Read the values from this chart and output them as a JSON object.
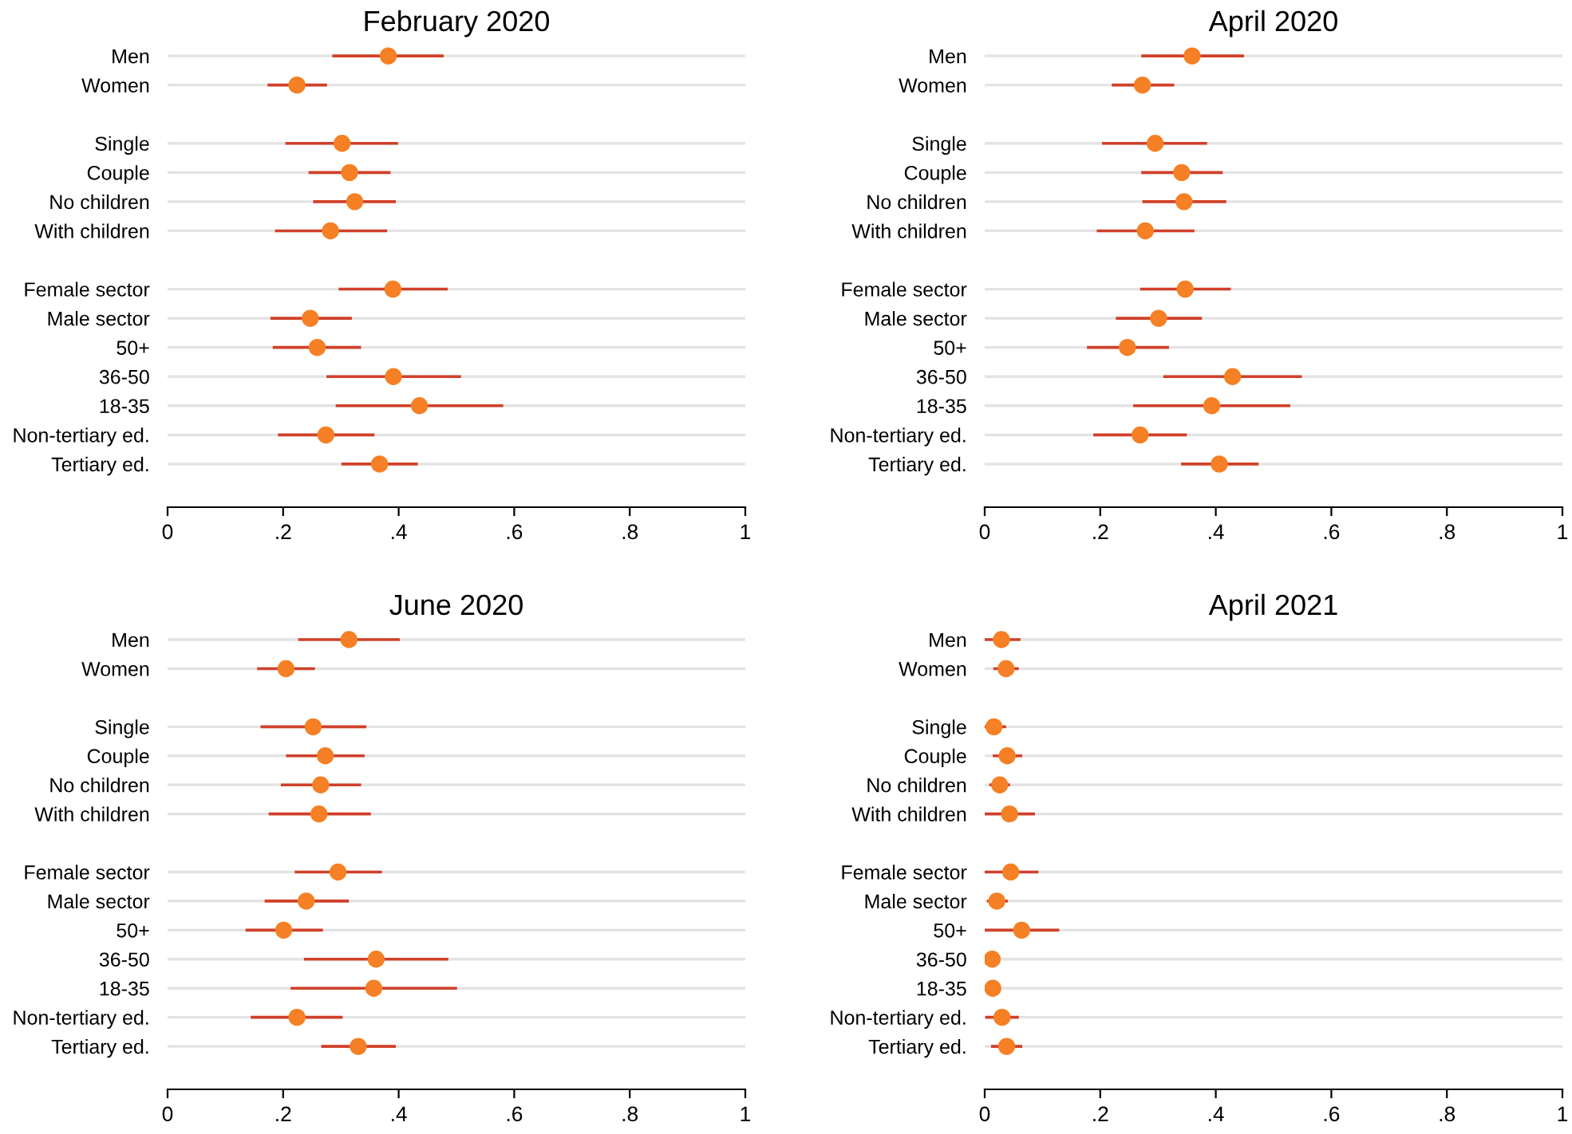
{
  "chart_data": [
    {
      "type": "scatter",
      "orientation": "horizontal",
      "title": "February 2020",
      "categories": [
        "Men",
        "Women",
        null,
        "Single",
        "Couple",
        "No children",
        "With children",
        null,
        "Female sector",
        "Male sector",
        "50+",
        "36-50",
        "18-35",
        "Non-tertiary ed.",
        "Tertiary ed."
      ],
      "series": [
        {
          "color": "#f58025",
          "values": [
            0.382,
            0.224,
            null,
            0.302,
            0.315,
            0.324,
            0.282,
            null,
            0.39,
            0.247,
            0.259,
            0.391,
            0.436,
            0.274,
            0.367
          ],
          "errors": [
            [
              0.285,
              0.478
            ],
            [
              0.173,
              0.276
            ],
            null,
            [
              0.204,
              0.399
            ],
            [
              0.244,
              0.386
            ],
            [
              0.252,
              0.395
            ],
            [
              0.186,
              0.38
            ],
            null,
            [
              0.296,
              0.485
            ],
            [
              0.178,
              0.319
            ],
            [
              0.182,
              0.335
            ],
            [
              0.275,
              0.508
            ],
            [
              0.291,
              0.581
            ],
            [
              0.191,
              0.358
            ],
            [
              0.301,
              0.433
            ]
          ]
        }
      ],
      "xlim": [
        0,
        1
      ],
      "xticks": [
        0,
        {
          "value": 0.2,
          "label": ".2"
        },
        {
          "value": 0.4,
          "label": ".4"
        },
        {
          "value": 0.6,
          "label": ".6"
        },
        {
          "value": 0.8,
          "label": ".8"
        },
        1
      ],
      "grid": "y",
      "marker": "circle",
      "legend": false
    },
    {
      "type": "scatter",
      "orientation": "horizontal",
      "title": "April 2020",
      "categories": [
        "Men",
        "Women",
        null,
        "Single",
        "Couple",
        "No children",
        "With children",
        null,
        "Female sector",
        "Male sector",
        "50+",
        "36-50",
        "18-35",
        "Non-tertiary ed.",
        "Tertiary ed."
      ],
      "series": [
        {
          "color": "#f58025",
          "values": [
            0.359,
            0.273,
            null,
            0.295,
            0.341,
            0.345,
            0.278,
            null,
            0.347,
            0.301,
            0.247,
            0.429,
            0.393,
            0.269,
            0.406
          ],
          "errors": [
            [
              0.271,
              0.449
            ],
            [
              0.22,
              0.328
            ],
            null,
            [
              0.203,
              0.385
            ],
            [
              0.271,
              0.412
            ],
            [
              0.273,
              0.418
            ],
            [
              0.194,
              0.363
            ],
            null,
            [
              0.269,
              0.426
            ],
            [
              0.227,
              0.376
            ],
            [
              0.177,
              0.319
            ],
            [
              0.309,
              0.549
            ],
            [
              0.257,
              0.529
            ],
            [
              0.188,
              0.35
            ],
            [
              0.34,
              0.474
            ]
          ]
        }
      ],
      "xlim": [
        0,
        1
      ],
      "xticks": [
        0,
        {
          "value": 0.2,
          "label": ".2"
        },
        {
          "value": 0.4,
          "label": ".4"
        },
        {
          "value": 0.6,
          "label": ".6"
        },
        {
          "value": 0.8,
          "label": ".8"
        },
        1
      ],
      "grid": "y",
      "marker": "circle",
      "legend": false
    },
    {
      "type": "scatter",
      "orientation": "horizontal",
      "title": "June 2020",
      "categories": [
        "Men",
        "Women",
        null,
        "Single",
        "Couple",
        "No children",
        "With children",
        null,
        "Female sector",
        "Male sector",
        "50+",
        "36-50",
        "18-35",
        "Non-tertiary ed.",
        "Tertiary ed."
      ],
      "series": [
        {
          "color": "#f58025",
          "values": [
            0.314,
            0.205,
            null,
            0.252,
            0.273,
            0.265,
            0.262,
            null,
            0.295,
            0.24,
            0.201,
            0.361,
            0.357,
            0.224,
            0.33
          ],
          "errors": [
            [
              0.226,
              0.402
            ],
            [
              0.155,
              0.255
            ],
            null,
            [
              0.161,
              0.344
            ],
            [
              0.205,
              0.341
            ],
            [
              0.196,
              0.335
            ],
            [
              0.175,
              0.352
            ],
            null,
            [
              0.22,
              0.371
            ],
            [
              0.168,
              0.314
            ],
            [
              0.135,
              0.269
            ],
            [
              0.236,
              0.486
            ],
            [
              0.213,
              0.501
            ],
            [
              0.144,
              0.303
            ],
            [
              0.266,
              0.395
            ]
          ]
        }
      ],
      "xlim": [
        0,
        1
      ],
      "xticks": [
        0,
        {
          "value": 0.2,
          "label": ".2"
        },
        {
          "value": 0.4,
          "label": ".4"
        },
        {
          "value": 0.6,
          "label": ".6"
        },
        {
          "value": 0.8,
          "label": ".8"
        },
        1
      ],
      "grid": "y",
      "marker": "circle",
      "legend": false
    },
    {
      "type": "scatter",
      "orientation": "horizontal",
      "title": "April 2021",
      "categories": [
        "Men",
        "Women",
        null,
        "Single",
        "Couple",
        "No children",
        "With children",
        null,
        "Female sector",
        "Male sector",
        "50+",
        "36-50",
        "18-35",
        "Non-tertiary ed.",
        "Tertiary ed."
      ],
      "series": [
        {
          "color": "#f58025",
          "values": [
            0.029,
            0.037,
            null,
            0.016,
            0.039,
            0.026,
            0.043,
            null,
            0.045,
            0.021,
            0.064,
            0.013,
            0.014,
            0.03,
            0.038
          ],
          "errors": [
            [
              0.0,
              0.062
            ],
            [
              0.015,
              0.059
            ],
            null,
            [
              0.0,
              0.037
            ],
            [
              0.014,
              0.065
            ],
            [
              0.008,
              0.044
            ],
            [
              0.0,
              0.087
            ],
            null,
            [
              0.0,
              0.093
            ],
            [
              0.004,
              0.04
            ],
            [
              0.0,
              0.129
            ],
            [
              0.002,
              0.024
            ],
            [
              0.005,
              0.023
            ],
            [
              0.001,
              0.059
            ],
            [
              0.011,
              0.065
            ]
          ]
        }
      ],
      "xlim": [
        0,
        1
      ],
      "xticks": [
        0,
        {
          "value": 0.2,
          "label": ".2"
        },
        {
          "value": 0.4,
          "label": ".4"
        },
        {
          "value": 0.6,
          "label": ".6"
        },
        {
          "value": 0.8,
          "label": ".8"
        },
        1
      ],
      "grid": "y",
      "marker": "circle",
      "legend": false
    }
  ]
}
